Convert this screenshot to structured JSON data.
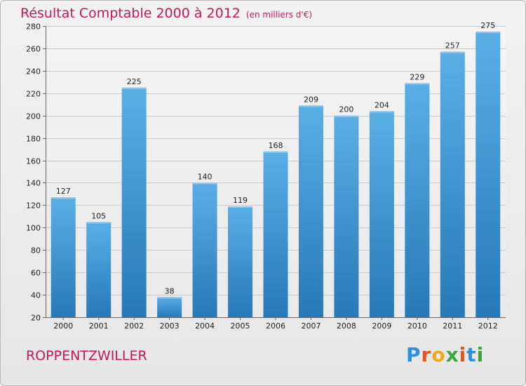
{
  "chart_data": {
    "type": "bar",
    "title": "Résultat Comptable 2000 à 2012",
    "subtitle": "(en milliers d'€)",
    "categories": [
      "2000",
      "2001",
      "2002",
      "2003",
      "2004",
      "2005",
      "2006",
      "2007",
      "2008",
      "2009",
      "2010",
      "2011",
      "2012"
    ],
    "values": [
      127,
      105,
      225,
      38,
      140,
      119,
      168,
      209,
      200,
      204,
      229,
      257,
      275
    ],
    "xlabel": "",
    "ylabel": "",
    "ylim": [
      20,
      280
    ],
    "yticks": [
      20,
      40,
      60,
      80,
      100,
      120,
      140,
      160,
      180,
      200,
      220,
      240,
      260,
      280
    ],
    "grid": true,
    "bar_color_top": "#5aaee6",
    "bar_color_bottom": "#2879b8"
  },
  "footer": {
    "town": "ROPPENTZWILLER",
    "brand_letters": [
      "P",
      "r",
      "o",
      "x",
      "i",
      "t",
      "i"
    ],
    "brand_colors": [
      "#2f8fd8",
      "#e8531c",
      "#f0a81c",
      "#3aa73a",
      "#e8531c",
      "#2f8fd8",
      "#3aa73a"
    ]
  },
  "colors": {
    "title": "#c2185b",
    "grid": "#cccccc",
    "axis_text": "#222222"
  }
}
